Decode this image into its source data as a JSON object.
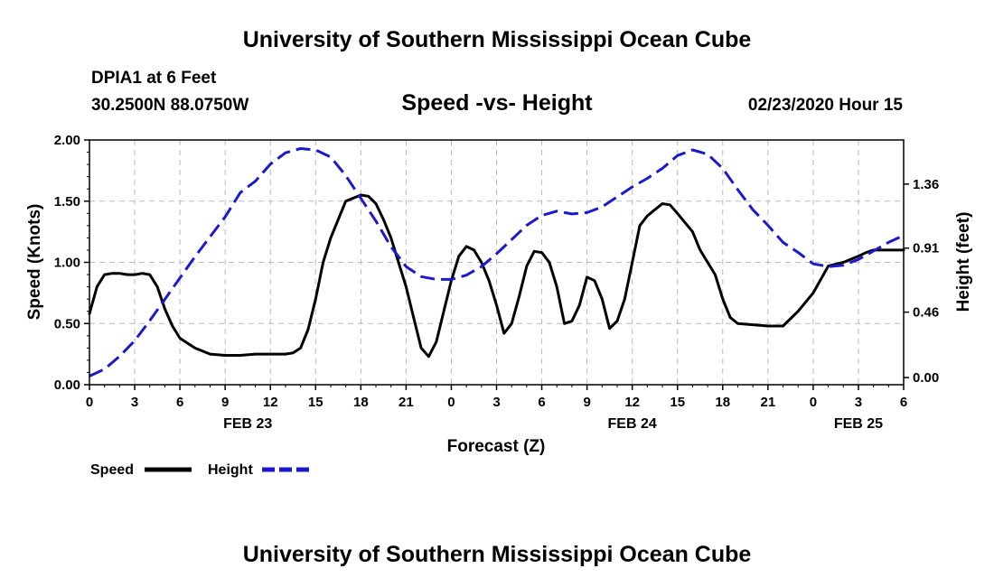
{
  "header": {
    "title": "University of Southern Mississippi Ocean Cube",
    "station": "DPIA1 at 6 Feet",
    "coords": "30.2500N 88.0750W",
    "chart_title": "Speed -vs- Height",
    "datetime": "02/23/2020 Hour 15"
  },
  "footer": {
    "title": "University of Southern Mississippi Ocean Cube"
  },
  "chart_data": {
    "type": "line",
    "title": "Speed -vs- Height",
    "xlabel": "Forecast (Z)",
    "ylabel": "Speed (Knots)",
    "y2label": "Height (feet)",
    "x_range": [
      0,
      54
    ],
    "ylim": [
      0,
      2.0
    ],
    "y2lim": [
      -0.05,
      1.67
    ],
    "x_tick_labels": [
      "0",
      "3",
      "6",
      "9",
      "12",
      "15",
      "18",
      "21",
      "0",
      "3",
      "6",
      "9",
      "12",
      "15",
      "18",
      "21",
      "0",
      "3",
      "6"
    ],
    "y_ticks": [
      "0.00",
      "0.50",
      "1.00",
      "1.50",
      "2.00"
    ],
    "y2_ticks": [
      "0.00",
      "0.46",
      "0.91",
      "1.36"
    ],
    "date_labels": [
      {
        "label": "FEB 23",
        "hour": 10.5
      },
      {
        "label": "FEB 24",
        "hour": 36
      },
      {
        "label": "FEB 25",
        "hour": 51
      }
    ],
    "grid": true,
    "legend_position": "bottom-left",
    "series": [
      {
        "name": "Speed",
        "axis": "left",
        "color": "#000000",
        "style": "solid",
        "x": [
          0,
          0.5,
          1,
          1.5,
          2,
          2.5,
          3,
          3.5,
          4,
          4.5,
          5,
          5.5,
          6,
          7,
          8,
          9,
          10,
          11,
          12,
          13,
          13.5,
          14,
          14.5,
          15,
          15.5,
          16,
          17,
          18,
          18.5,
          19,
          19.5,
          20,
          20.5,
          21,
          21.5,
          22,
          22.5,
          23,
          23.5,
          24,
          24.5,
          25,
          25.5,
          26,
          26.5,
          27,
          27.5,
          28,
          28.5,
          29,
          29.5,
          30,
          30.5,
          31,
          31.5,
          32,
          32.5,
          33,
          33.5,
          34,
          34.5,
          35,
          35.5,
          36,
          36.5,
          37,
          37.5,
          38,
          38.5,
          39,
          40,
          40.5,
          41,
          41.5,
          42,
          42.5,
          43,
          44,
          45,
          46,
          47,
          48,
          49,
          50,
          51,
          51.5,
          52,
          52.5,
          53,
          53.5,
          54
        ],
        "values": [
          0.58,
          0.8,
          0.9,
          0.91,
          0.91,
          0.9,
          0.9,
          0.91,
          0.9,
          0.8,
          0.62,
          0.48,
          0.38,
          0.3,
          0.25,
          0.24,
          0.24,
          0.25,
          0.25,
          0.25,
          0.26,
          0.3,
          0.45,
          0.7,
          1.0,
          1.2,
          1.5,
          1.55,
          1.54,
          1.48,
          1.35,
          1.2,
          1.0,
          0.8,
          0.55,
          0.3,
          0.23,
          0.35,
          0.6,
          0.85,
          1.05,
          1.13,
          1.1,
          1.0,
          0.85,
          0.65,
          0.42,
          0.5,
          0.72,
          0.97,
          1.09,
          1.08,
          1.0,
          0.8,
          0.5,
          0.52,
          0.65,
          0.88,
          0.85,
          0.7,
          0.46,
          0.52,
          0.7,
          1.0,
          1.3,
          1.38,
          1.43,
          1.48,
          1.47,
          1.4,
          1.25,
          1.1,
          1.0,
          0.9,
          0.7,
          0.55,
          0.5,
          0.49,
          0.48,
          0.48,
          0.6,
          0.75,
          0.97,
          1.0,
          1.05,
          1.08,
          1.1,
          1.1,
          1.1,
          1.1,
          1.1
        ]
      },
      {
        "name": "Height",
        "axis": "right",
        "color": "#1a1acc",
        "style": "dashed",
        "x": [
          0,
          1,
          2,
          3,
          4,
          5,
          6,
          7,
          8,
          9,
          10,
          11,
          12,
          13,
          14,
          15,
          16,
          17,
          18,
          19,
          20,
          21,
          22,
          23,
          24,
          25,
          26,
          27,
          28,
          29,
          30,
          31,
          32,
          33,
          34,
          35,
          36,
          37,
          38,
          39,
          40,
          41,
          42,
          43,
          44,
          45,
          46,
          47,
          48,
          49,
          50,
          51,
          52,
          53,
          54
        ],
        "values": [
          0.01,
          0.06,
          0.15,
          0.26,
          0.4,
          0.55,
          0.7,
          0.85,
          0.99,
          1.13,
          1.3,
          1.38,
          1.5,
          1.58,
          1.61,
          1.6,
          1.55,
          1.42,
          1.26,
          1.1,
          0.92,
          0.78,
          0.71,
          0.69,
          0.69,
          0.72,
          0.78,
          0.87,
          0.97,
          1.07,
          1.14,
          1.17,
          1.15,
          1.16,
          1.2,
          1.27,
          1.34,
          1.4,
          1.47,
          1.56,
          1.6,
          1.57,
          1.47,
          1.32,
          1.18,
          1.07,
          0.95,
          0.88,
          0.8,
          0.78,
          0.79,
          0.83,
          0.89,
          0.95,
          1.0
        ]
      }
    ]
  }
}
